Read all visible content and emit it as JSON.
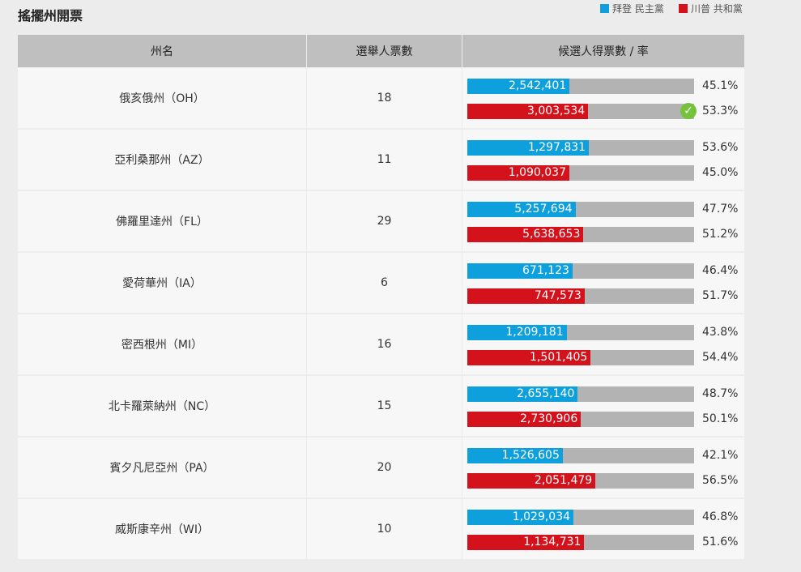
{
  "title": "搖擺州開票",
  "legend": [
    {
      "label": "拜登 民主黨",
      "color": "#0ea0dd"
    },
    {
      "label": "川普 共和黨",
      "color": "#d3121c"
    }
  ],
  "table": {
    "headers": [
      "州名",
      "選舉人票數",
      "候選人得票數 / 率"
    ],
    "rows": [
      {
        "state": "俄亥俄州（OH）",
        "electoral_votes": 18,
        "results": [
          {
            "votes": "2,542,401",
            "percent": {
              "value": 45.1,
              "label": "45.1%"
            }
          },
          {
            "votes": "3,003,534",
            "percent": {
              "value": 53.3,
              "label": "53.3%"
            },
            "winner": true
          }
        ]
      },
      {
        "state": "亞利桑那州（AZ）",
        "electoral_votes": 11,
        "results": [
          {
            "votes": "1,297,831",
            "percent": {
              "value": 53.6,
              "label": "53.6%"
            }
          },
          {
            "votes": "1,090,037",
            "percent": {
              "value": 45.0,
              "label": "45.0%"
            }
          }
        ]
      },
      {
        "state": "佛羅里達州（FL）",
        "electoral_votes": 29,
        "results": [
          {
            "votes": "5,257,694",
            "percent": {
              "value": 47.7,
              "label": "47.7%"
            }
          },
          {
            "votes": "5,638,653",
            "percent": {
              "value": 51.2,
              "label": "51.2%"
            }
          }
        ]
      },
      {
        "state": "愛荷華州（IA）",
        "electoral_votes": 6,
        "results": [
          {
            "votes": "671,123",
            "percent": {
              "value": 46.4,
              "label": "46.4%"
            }
          },
          {
            "votes": "747,573",
            "percent": {
              "value": 51.7,
              "label": "51.7%"
            }
          }
        ]
      },
      {
        "state": "密西根州（MI）",
        "electoral_votes": 16,
        "results": [
          {
            "votes": "1,209,181",
            "percent": {
              "value": 43.8,
              "label": "43.8%"
            }
          },
          {
            "votes": "1,501,405",
            "percent": {
              "value": 54.4,
              "label": "54.4%"
            }
          }
        ]
      },
      {
        "state": "北卡羅萊納州（NC）",
        "electoral_votes": 15,
        "results": [
          {
            "votes": "2,655,140",
            "percent": {
              "value": 48.7,
              "label": "48.7%"
            }
          },
          {
            "votes": "2,730,906",
            "percent": {
              "value": 50.1,
              "label": "50.1%"
            }
          }
        ]
      },
      {
        "state": "賓夕凡尼亞州（PA）",
        "electoral_votes": 20,
        "results": [
          {
            "votes": "1,526,605",
            "percent": {
              "value": 42.1,
              "label": "42.1%"
            }
          },
          {
            "votes": "2,051,479",
            "percent": {
              "value": 56.5,
              "label": "56.5%"
            }
          }
        ]
      },
      {
        "state": "威斯康辛州（WI）",
        "electoral_votes": 10,
        "results": [
          {
            "votes": "1,029,034",
            "percent": {
              "value": 46.8,
              "label": "46.8%"
            }
          },
          {
            "votes": "1,134,731",
            "percent": {
              "value": 51.6,
              "label": "51.6%"
            }
          }
        ]
      }
    ]
  }
}
